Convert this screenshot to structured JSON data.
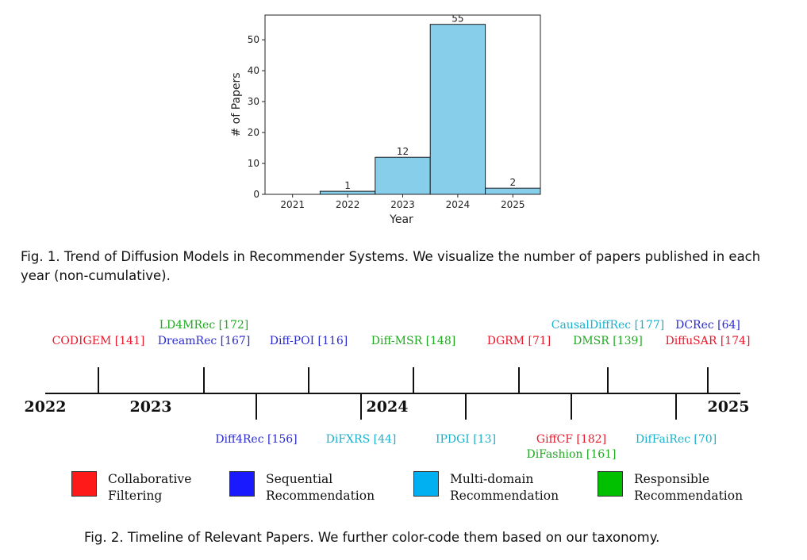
{
  "chart_data": {
    "type": "bar",
    "categories": [
      "2021",
      "2022",
      "2023",
      "2024",
      "2025"
    ],
    "values": [
      0,
      1,
      12,
      55,
      2
    ],
    "bar_labels": [
      "",
      "1",
      "12",
      "55",
      "2"
    ],
    "xlabel": "Year",
    "ylabel": "# of Papers",
    "ylim": [
      0,
      58
    ],
    "yticks": [
      "0",
      "10",
      "20",
      "30",
      "40",
      "50"
    ],
    "bar_color": "#87ceeb",
    "edge_color": "#1a1a1a",
    "grid": false
  },
  "fig1_caption": "Fig. 1.  Trend of Diffusion Models in Recommender Systems. We visualize the number of papers published in each year (non-cumulative).",
  "timeline": {
    "years": [
      "2022",
      "2023",
      "2024",
      "2025"
    ],
    "colors": {
      "collaborative": "#e8192c",
      "sequential": "#2a2ad0",
      "multidomain": "#1ab0cc",
      "responsible": "#1faa1f"
    },
    "above": [
      {
        "labels": [
          {
            "text": "CODIGEM [141]",
            "cat": "collaborative"
          }
        ]
      },
      {
        "labels": [
          {
            "text": "LD4MRec [172]",
            "cat": "responsible"
          },
          {
            "text": "DreamRec [167]",
            "cat": "sequential"
          }
        ]
      },
      {
        "labels": [
          {
            "text": "Diff-POI [116]",
            "cat": "sequential"
          }
        ]
      },
      {
        "labels": [
          {
            "text": "Diff-MSR [148]",
            "cat": "responsible"
          }
        ]
      },
      {
        "labels": [
          {
            "text": "DGRM [71]",
            "cat": "collaborative"
          }
        ]
      },
      {
        "labels": [
          {
            "text": "CausalDiffRec [177]",
            "cat": "multidomain"
          },
          {
            "text": "DMSR [139]",
            "cat": "responsible"
          }
        ]
      },
      {
        "labels": [
          {
            "text": "DCRec [64]",
            "cat": "sequential"
          },
          {
            "text": "DiffuSAR [174]",
            "cat": "collaborative"
          }
        ]
      }
    ],
    "below": [
      {
        "labels": [
          {
            "text": "Diff4Rec [156]",
            "cat": "sequential"
          }
        ]
      },
      {
        "labels": [
          {
            "text": "DiFXRS [44]",
            "cat": "multidomain"
          }
        ]
      },
      {
        "labels": [
          {
            "text": "IPDGI [13]",
            "cat": "multidomain"
          }
        ]
      },
      {
        "labels": [
          {
            "text": "GiffCF [182]",
            "cat": "collaborative"
          },
          {
            "text": "DiFashion [161]",
            "cat": "responsible"
          }
        ]
      },
      {
        "labels": [
          {
            "text": "DifFaiRec [70]",
            "cat": "multidomain"
          }
        ]
      }
    ]
  },
  "legend": [
    {
      "line1": "Collaborative",
      "line2": "Filtering",
      "color": "#ff1a1a"
    },
    {
      "line1": "Sequential",
      "line2": "Recommendation",
      "color": "#1a1aff"
    },
    {
      "line1": "Multi-domain",
      "line2": "Recommendation",
      "color": "#00b0f0"
    },
    {
      "line1": "Responsible",
      "line2": "Recommendation",
      "color": "#00c000"
    }
  ],
  "fig2_caption": "Fig. 2.  Timeline of Relevant Papers. We further color-code them based on our taxonomy."
}
